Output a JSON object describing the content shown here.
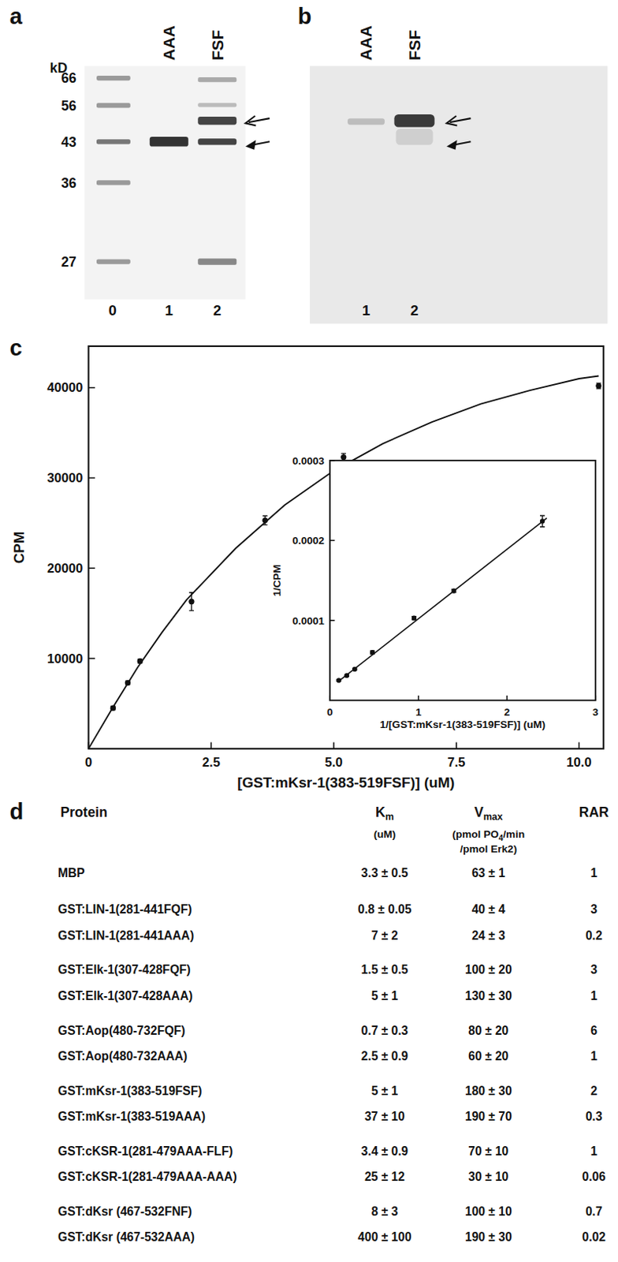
{
  "gel_a": {
    "label": "a",
    "unit": "kD",
    "markers": [
      66,
      56,
      43,
      36,
      27
    ],
    "lanes": [
      "AAA",
      "FSF"
    ],
    "lane_numbers": [
      0,
      1,
      2
    ]
  },
  "gel_b": {
    "label": "b",
    "lanes": [
      "AAA",
      "FSF"
    ],
    "lane_numbers": [
      1,
      2
    ]
  },
  "chart_data": [
    {
      "type": "scatter",
      "label": "c",
      "x_label": "[GST:mKsr-1(383-519FSF)] (uM)",
      "y_label": "CPM",
      "xlim": [
        0,
        10.5
      ],
      "ylim": [
        0,
        44600
      ],
      "xticks": [
        0,
        2.5,
        {
          "value": 5,
          "label": "5.0"
        },
        7.5,
        {
          "value": 10,
          "label": "10.0"
        }
      ],
      "yticks": [
        10000,
        20000,
        30000,
        40000
      ],
      "series": [
        {
          "type": "scatter",
          "x": [
            0.5,
            0.8,
            1.05,
            2.1,
            3.6,
            5.2,
            10.4
          ],
          "values": [
            4500,
            7300,
            9700,
            16300,
            25300,
            32300,
            40200
          ],
          "errors": [
            200,
            200,
            200,
            1000,
            500,
            400,
            300
          ]
        },
        {
          "type": "line",
          "x": [
            0,
            0.5,
            1,
            1.5,
            2,
            3,
            4,
            5,
            6,
            7,
            8,
            9,
            10,
            10.4
          ],
          "values": [
            0,
            4600,
            9000,
            12900,
            16500,
            22200,
            27000,
            30800,
            33800,
            36200,
            38200,
            39700,
            41000,
            41300
          ]
        }
      ]
    },
    {
      "type": "scatter",
      "x_label": "1/[GST:mKsr-1(383-519FSF)] (uM)",
      "y_label": "1/CPM",
      "xlim": [
        0,
        3
      ],
      "ylim": [
        0,
        0.0003
      ],
      "xticks": [
        0,
        1,
        2,
        3
      ],
      "yticks": [
        0.0001,
        0.0002,
        0.0003
      ],
      "series": [
        {
          "type": "scatter",
          "x": [
            0.1,
            0.19,
            0.28,
            0.48,
            0.95,
            1.4,
            2.4
          ],
          "values": [
            2.5e-05,
            3.1e-05,
            3.9e-05,
            6e-05,
            0.000103,
            0.000137,
            0.000224
          ],
          "errors": [
            1e-06,
            1e-06,
            1e-06,
            2e-06,
            2e-06,
            2e-06,
            7e-06
          ]
        },
        {
          "type": "line",
          "x": [
            0.1,
            2.45
          ],
          "values": [
            2.4e-05,
            0.000228
          ]
        }
      ]
    }
  ],
  "table": {
    "label": "d",
    "columns": [
      {
        "label": "Protein"
      },
      {
        "label": "K",
        "label_sub": "m",
        "units": [
          [
            "(uM)"
          ]
        ]
      },
      {
        "label": "V",
        "label_sub": "max",
        "units": [
          [
            "(pmol PO",
            "4",
            "/min"
          ],
          [
            "/pmol Erk2)"
          ]
        ]
      },
      {
        "label": "RAR"
      }
    ],
    "rows": [
      [
        "MBP",
        "3.3 ± 0.5",
        "63 ± 1",
        "1"
      ],
      [
        "GST:LIN-1(281-441FQF)",
        "0.8 ± 0.05",
        "40 ± 4",
        "3"
      ],
      [
        "GST:LIN-1(281-441AAA)",
        "7 ± 2",
        "24 ± 3",
        "0.2"
      ],
      [
        "GST:Elk-1(307-428FQF)",
        "1.5 ± 0.5",
        "100 ± 20",
        "3"
      ],
      [
        "GST:Elk-1(307-428AAA)",
        "5 ± 1",
        "130 ± 30",
        "1"
      ],
      [
        "GST:Aop(480-732FQF)",
        "0.7 ± 0.3",
        "80 ± 20",
        "6"
      ],
      [
        "GST:Aop(480-732AAA)",
        "2.5 ± 0.9",
        "60 ± 20",
        "1"
      ],
      [
        "GST:mKsr-1(383-519FSF)",
        "5 ± 1",
        "180 ± 30",
        "2"
      ],
      [
        "GST:mKsr-1(383-519AAA)",
        "37 ± 10",
        "190 ± 70",
        "0.3"
      ],
      [
        "GST:cKSR-1(281-479AAA-FLF)",
        "3.4 ± 0.9",
        "70 ± 10",
        "1"
      ],
      [
        "GST:cKSR-1(281-479AAA-AAA)",
        "25 ± 12",
        "30 ± 10",
        "0.06"
      ],
      [
        "GST:dKsr (467-532FNF)",
        "8 ± 3",
        "100 ± 10",
        "0.7"
      ],
      [
        "GST:dKsr (467-532AAA)",
        "400 ± 100",
        "190 ± 30",
        "0.02"
      ]
    ]
  }
}
